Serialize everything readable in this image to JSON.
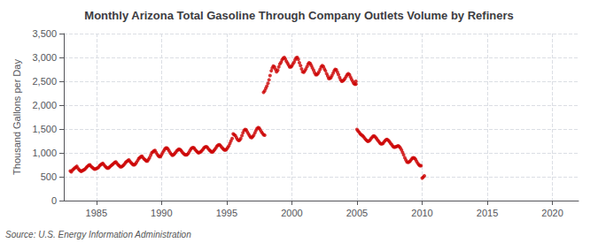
{
  "chart_data": {
    "type": "scatter",
    "title": "Monthly Arizona Total Gasoline Through Company Outlets Volume by Refiners",
    "ylabel": "Thousand Gallons per Day",
    "source": "Source: U.S. Energy Information Administration",
    "marker": "circle",
    "grid": true,
    "xlim": [
      1982.5,
      2022
    ],
    "ylim": [
      0,
      3500
    ],
    "xticks": [
      1985,
      1990,
      1995,
      2000,
      2005,
      2010,
      2015,
      2020
    ],
    "yticks": [
      0,
      500,
      {
        "value": 1000,
        "label": "1,000"
      },
      {
        "value": 1500,
        "label": "1,500"
      },
      {
        "value": 2000,
        "label": "2,000"
      },
      {
        "value": 2500,
        "label": "2,500"
      },
      {
        "value": 3000,
        "label": "3,000"
      },
      {
        "value": 3500,
        "label": "3,500"
      }
    ],
    "series": [
      {
        "color": "#cc0000",
        "x": [
          1983.0,
          1983.08,
          1983.17,
          1983.25,
          1983.33,
          1983.42,
          1983.5,
          1983.58,
          1983.67,
          1983.75,
          1983.83,
          1983.92,
          1984.0,
          1984.08,
          1984.17,
          1984.25,
          1984.33,
          1984.42,
          1984.5,
          1984.58,
          1984.67,
          1984.75,
          1984.83,
          1984.92,
          1985.0,
          1985.08,
          1985.17,
          1985.25,
          1985.33,
          1985.42,
          1985.5,
          1985.58,
          1985.67,
          1985.75,
          1985.83,
          1985.92,
          1986.0,
          1986.08,
          1986.17,
          1986.25,
          1986.33,
          1986.42,
          1986.5,
          1986.58,
          1986.67,
          1986.75,
          1986.83,
          1986.92,
          1987.0,
          1987.08,
          1987.17,
          1987.25,
          1987.33,
          1987.42,
          1987.5,
          1987.58,
          1987.67,
          1987.75,
          1987.83,
          1987.92,
          1988.0,
          1988.08,
          1988.17,
          1988.25,
          1988.33,
          1988.42,
          1988.5,
          1988.58,
          1988.67,
          1988.75,
          1988.83,
          1988.92,
          1989.0,
          1989.08,
          1989.17,
          1989.25,
          1989.33,
          1989.42,
          1989.5,
          1989.58,
          1989.67,
          1989.75,
          1989.83,
          1989.92,
          1990.0,
          1990.08,
          1990.17,
          1990.25,
          1990.33,
          1990.42,
          1990.5,
          1990.58,
          1990.67,
          1990.75,
          1990.83,
          1990.92,
          1991.0,
          1991.08,
          1991.17,
          1991.25,
          1991.33,
          1991.42,
          1991.5,
          1991.58,
          1991.67,
          1991.75,
          1991.83,
          1991.92,
          1992.0,
          1992.08,
          1992.17,
          1992.25,
          1992.33,
          1992.42,
          1992.5,
          1992.58,
          1992.67,
          1992.75,
          1992.83,
          1992.92,
          1993.0,
          1993.08,
          1993.17,
          1993.25,
          1993.33,
          1993.42,
          1993.5,
          1993.58,
          1993.67,
          1993.75,
          1993.83,
          1993.92,
          1994.0,
          1994.08,
          1994.17,
          1994.25,
          1994.33,
          1994.42,
          1994.5,
          1994.58,
          1994.67,
          1994.75,
          1994.83,
          1994.92,
          1995.0,
          1995.08,
          1995.17,
          1995.25,
          1995.33,
          1995.42,
          1995.5,
          1995.58,
          1995.67,
          1995.75,
          1995.83,
          1995.92,
          1996.0,
          1996.08,
          1996.17,
          1996.25,
          1996.33,
          1996.42,
          1996.5,
          1996.58,
          1996.67,
          1996.75,
          1996.83,
          1996.92,
          1997.0,
          1997.08,
          1997.17,
          1997.25,
          1997.33,
          1997.42,
          1997.5,
          1997.58,
          1997.67,
          1997.75,
          1997.83,
          1997.92
        ],
        "values": [
          620,
          600,
          640,
          660,
          680,
          700,
          720,
          680,
          650,
          630,
          610,
          625,
          640,
          650,
          670,
          700,
          720,
          740,
          750,
          720,
          700,
          680,
          660,
          660,
          670,
          680,
          700,
          730,
          750,
          770,
          780,
          750,
          720,
          700,
          680,
          680,
          700,
          720,
          740,
          760,
          780,
          800,
          810,
          780,
          750,
          730,
          710,
          710,
          720,
          740,
          770,
          800,
          820,
          840,
          850,
          820,
          790,
          770,
          750,
          750,
          770,
          800,
          840,
          880,
          900,
          920,
          930,
          900,
          870,
          850,
          830,
          830,
          860,
          900,
          950,
          1000,
          1020,
          1040,
          1050,
          1010,
          970,
          940,
          920,
          920,
          960,
          1000,
          1040,
          1080,
          1100,
          1100,
          1080,
          1040,
          1000,
          970,
          950,
          960,
          980,
          1010,
          1040,
          1060,
          1080,
          1070,
          1050,
          1020,
          990,
          970,
          960,
          960,
          970,
          1000,
          1040,
          1080,
          1100,
          1110,
          1100,
          1070,
          1040,
          1020,
          1000,
          1010,
          1020,
          1040,
          1070,
          1100,
          1120,
          1130,
          1120,
          1090,
          1060,
          1040,
          1020,
          1020,
          1040,
          1070,
          1100,
          1140,
          1160,
          1170,
          1160,
          1130,
          1100,
          1080,
          1060,
          1060,
          1080,
          1110,
          1150,
          1200,
          1250,
          1300,
          1400,
          1380,
          1360,
          1320,
          1280,
          1260,
          1270,
          1300,
          1360,
          1420,
          1470,
          1490,
          1480,
          1440,
          1400,
          1360,
          1330,
          1320,
          1340,
          1370,
          1420,
          1470,
          1510,
          1530,
          1520,
          1480,
          1440,
          1410,
          1380,
          1370
        ]
      },
      {
        "color": "#cc0000",
        "x": [
          1997.83,
          1997.92,
          1998.0,
          1998.08,
          1998.17,
          1998.25,
          1998.33,
          1998.42,
          1998.5,
          1998.58,
          1998.67,
          1998.75,
          1998.83,
          1998.92,
          1999.0,
          1999.08,
          1999.17,
          1999.25,
          1999.33,
          1999.42,
          1999.5,
          1999.58,
          1999.67,
          1999.75,
          1999.83,
          1999.92,
          2000.0,
          2000.08,
          2000.17,
          2000.25,
          2000.33,
          2000.42,
          2000.5,
          2000.58,
          2000.67,
          2000.75,
          2000.83,
          2000.92,
          2001.0,
          2001.08,
          2001.17,
          2001.25,
          2001.33,
          2001.42,
          2001.5,
          2001.58,
          2001.67,
          2001.75,
          2001.83,
          2001.92,
          2002.0,
          2002.08,
          2002.17,
          2002.25,
          2002.33,
          2002.42,
          2002.5,
          2002.58,
          2002.67,
          2002.75,
          2002.83,
          2002.92,
          2003.0,
          2003.08,
          2003.17,
          2003.25,
          2003.33,
          2003.42,
          2003.5,
          2003.58,
          2003.67,
          2003.75,
          2003.83,
          2003.92,
          2004.0,
          2004.08,
          2004.17,
          2004.25,
          2004.33,
          2004.42,
          2004.5,
          2004.58,
          2004.67,
          2004.75,
          2004.83,
          2004.92
        ],
        "values": [
          2270,
          2300,
          2350,
          2400,
          2460,
          2530,
          2620,
          2720,
          2780,
          2820,
          2800,
          2750,
          2700,
          2730,
          2800,
          2860,
          2900,
          2950,
          2980,
          3000,
          2970,
          2920,
          2880,
          2840,
          2800,
          2800,
          2820,
          2860,
          2900,
          2950,
          2990,
          3000,
          2960,
          2890,
          2830,
          2760,
          2700,
          2690,
          2720,
          2760,
          2810,
          2860,
          2890,
          2870,
          2830,
          2780,
          2730,
          2680,
          2640,
          2640,
          2660,
          2700,
          2750,
          2800,
          2830,
          2810,
          2760,
          2720,
          2660,
          2610,
          2560,
          2560,
          2580,
          2620,
          2670,
          2720,
          2750,
          2740,
          2690,
          2640,
          2580,
          2530,
          2500,
          2510,
          2530,
          2560,
          2600,
          2640,
          2660,
          2640,
          2590,
          2540,
          2500,
          2460,
          2440,
          2440
        ]
      },
      {
        "color": "#cc0000",
        "x": [
          2004.92,
          2005.0,
          2005.08,
          2005.17,
          2005.25,
          2005.33,
          2005.42,
          2005.5,
          2005.58,
          2005.67,
          2005.75,
          2005.83,
          2005.92,
          2006.0,
          2006.08,
          2006.17,
          2006.25,
          2006.33,
          2006.42,
          2006.5,
          2006.58,
          2006.67,
          2006.75,
          2006.83,
          2006.92,
          2007.0,
          2007.08,
          2007.17,
          2007.25,
          2007.33,
          2007.42,
          2007.5,
          2007.58,
          2007.67,
          2007.75,
          2007.83,
          2007.92,
          2008.0,
          2008.08,
          2008.17,
          2008.25,
          2008.33,
          2008.42,
          2008.5,
          2008.58,
          2008.67,
          2008.75,
          2008.83,
          2008.92,
          2009.0,
          2009.08,
          2009.17,
          2009.25,
          2009.33,
          2009.42,
          2009.5,
          2009.58,
          2009.67,
          2009.75,
          2009.83,
          2009.92,
          2010.0,
          2010.08,
          2010.17
        ],
        "values": [
          2500,
          1490,
          1460,
          1430,
          1400,
          1380,
          1360,
          1340,
          1310,
          1280,
          1260,
          1240,
          1250,
          1270,
          1300,
          1330,
          1350,
          1350,
          1330,
          1300,
          1270,
          1240,
          1210,
          1190,
          1190,
          1200,
          1230,
          1260,
          1280,
          1280,
          1260,
          1230,
          1200,
          1170,
          1140,
          1120,
          1120,
          1130,
          1140,
          1150,
          1130,
          1100,
          1060,
          1010,
          960,
          900,
          850,
          810,
          800,
          810,
          830,
          860,
          890,
          900,
          890,
          860,
          820,
          780,
          750,
          730,
          730,
          470,
          490,
          520
        ]
      }
    ]
  }
}
